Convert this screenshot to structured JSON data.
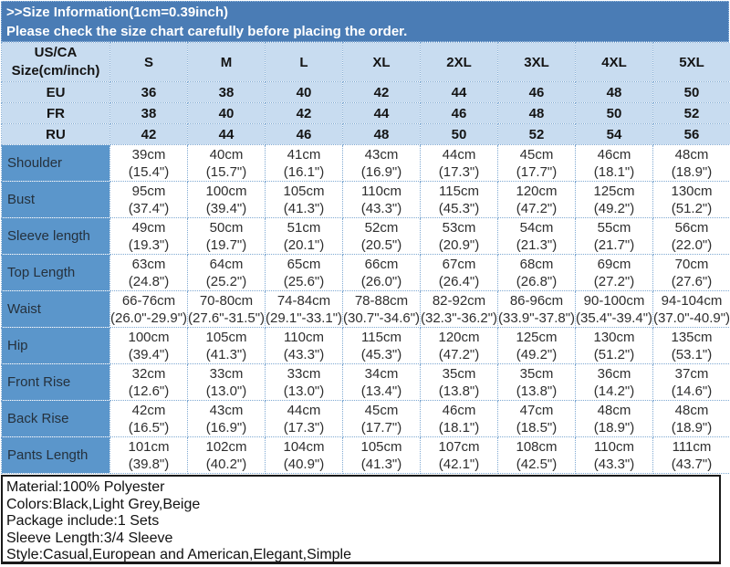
{
  "banner": {
    "line1": ">>Size Information(1cm=0.39inch)",
    "line2": "Please check the size chart carefully before placing the order."
  },
  "table": {
    "corner_header": [
      "US/CA",
      "Size(cm/inch)"
    ],
    "sizes": [
      "S",
      "M",
      "L",
      "XL",
      "2XL",
      "3XL",
      "4XL",
      "5XL"
    ],
    "region_rows": [
      {
        "label": "EU",
        "values": [
          "36",
          "38",
          "40",
          "42",
          "44",
          "46",
          "48",
          "50"
        ]
      },
      {
        "label": "FR",
        "values": [
          "38",
          "40",
          "42",
          "44",
          "46",
          "48",
          "50",
          "52"
        ]
      },
      {
        "label": "RU",
        "values": [
          "42",
          "44",
          "46",
          "48",
          "50",
          "52",
          "54",
          "56"
        ]
      }
    ],
    "measurement_rows": [
      {
        "label": "Shoulder",
        "values": [
          [
            "39cm",
            "(15.4\")"
          ],
          [
            "40cm",
            "(15.7\")"
          ],
          [
            "41cm",
            "(16.1\")"
          ],
          [
            "43cm",
            "(16.9\")"
          ],
          [
            "44cm",
            "(17.3\")"
          ],
          [
            "45cm",
            "(17.7\")"
          ],
          [
            "46cm",
            "(18.1\")"
          ],
          [
            "48cm",
            "(18.9\")"
          ]
        ]
      },
      {
        "label": "Bust",
        "values": [
          [
            "95cm",
            "(37.4\")"
          ],
          [
            "100cm",
            "(39.4\")"
          ],
          [
            "105cm",
            "(41.3\")"
          ],
          [
            "110cm",
            "(43.3\")"
          ],
          [
            "115cm",
            "(45.3\")"
          ],
          [
            "120cm",
            "(47.2\")"
          ],
          [
            "125cm",
            "(49.2\")"
          ],
          [
            "130cm",
            "(51.2\")"
          ]
        ]
      },
      {
        "label": "Sleeve length",
        "values": [
          [
            "49cm",
            "(19.3\")"
          ],
          [
            "50cm",
            "(19.7\")"
          ],
          [
            "51cm",
            "(20.1\")"
          ],
          [
            "52cm",
            "(20.5\")"
          ],
          [
            "53cm",
            "(20.9\")"
          ],
          [
            "54cm",
            "(21.3\")"
          ],
          [
            "55cm",
            "(21.7\")"
          ],
          [
            "56cm",
            "(22.0\")"
          ]
        ]
      },
      {
        "label": "Top Length",
        "values": [
          [
            "63cm",
            "(24.8\")"
          ],
          [
            "64cm",
            "(25.2\")"
          ],
          [
            "65cm",
            "(25.6\")"
          ],
          [
            "66cm",
            "(26.0\")"
          ],
          [
            "67cm",
            "(26.4\")"
          ],
          [
            "68cm",
            "(26.8\")"
          ],
          [
            "69cm",
            "(27.2\")"
          ],
          [
            "70cm",
            "(27.6\")"
          ]
        ]
      },
      {
        "label": "Waist",
        "values": [
          [
            "66-76cm",
            "(26.0\"-29.9\")"
          ],
          [
            "70-80cm",
            "(27.6\"-31.5\")"
          ],
          [
            "74-84cm",
            "(29.1\"-33.1\")"
          ],
          [
            "78-88cm",
            "(30.7\"-34.6\")"
          ],
          [
            "82-92cm",
            "(32.3\"-36.2\")"
          ],
          [
            "86-96cm",
            "(33.9\"-37.8\")"
          ],
          [
            "90-100cm",
            "(35.4\"-39.4\")"
          ],
          [
            "94-104cm",
            "(37.0\"-40.9\")"
          ]
        ]
      },
      {
        "label": "Hip",
        "values": [
          [
            "100cm",
            "(39.4\")"
          ],
          [
            "105cm",
            "(41.3\")"
          ],
          [
            "110cm",
            "(43.3\")"
          ],
          [
            "115cm",
            "(45.3\")"
          ],
          [
            "120cm",
            "(47.2\")"
          ],
          [
            "125cm",
            "(49.2\")"
          ],
          [
            "130cm",
            "(51.2\")"
          ],
          [
            "135cm",
            "(53.1\")"
          ]
        ]
      },
      {
        "label": "Front Rise",
        "values": [
          [
            "32cm",
            "(12.6\")"
          ],
          [
            "33cm",
            "(13.0\")"
          ],
          [
            "33cm",
            "(13.0\")"
          ],
          [
            "34cm",
            "(13.4\")"
          ],
          [
            "35cm",
            "(13.8\")"
          ],
          [
            "35cm",
            "(13.8\")"
          ],
          [
            "36cm",
            "(14.2\")"
          ],
          [
            "37cm",
            "(14.6\")"
          ]
        ]
      },
      {
        "label": "Back Rise",
        "values": [
          [
            "42cm",
            "(16.5\")"
          ],
          [
            "43cm",
            "(16.9\")"
          ],
          [
            "44cm",
            "(17.3\")"
          ],
          [
            "45cm",
            "(17.7\")"
          ],
          [
            "46cm",
            "(18.1\")"
          ],
          [
            "47cm",
            "(18.5\")"
          ],
          [
            "48cm",
            "(18.9\")"
          ],
          [
            "48cm",
            "(18.9\")"
          ]
        ]
      },
      {
        "label": "Pants Length",
        "values": [
          [
            "101cm",
            "(39.8\")"
          ],
          [
            "102cm",
            "(40.2\")"
          ],
          [
            "104cm",
            "(40.9\")"
          ],
          [
            "105cm",
            "(41.3\")"
          ],
          [
            "107cm",
            "(42.1\")"
          ],
          [
            "108cm",
            "(42.5\")"
          ],
          [
            "110cm",
            "(43.3\")"
          ],
          [
            "111cm",
            "(43.7\")"
          ]
        ]
      }
    ]
  },
  "footer": {
    "lines": [
      "Material:100% Polyester",
      "Colors:Black,Light Grey,Beige",
      "Package include:1 Sets",
      "Sleeve Length:3/4 Sleeve",
      "Style:Casual,European and American,Elegant,Simple"
    ]
  },
  "colors": {
    "banner_bg": "#4a7cb5",
    "header_bg": "#c8dcf0",
    "label_col_bg": "#5b96cb",
    "cell_border": "#7fa9d2",
    "banner_text": "#ffffff",
    "body_text": "#2e2e2e"
  }
}
